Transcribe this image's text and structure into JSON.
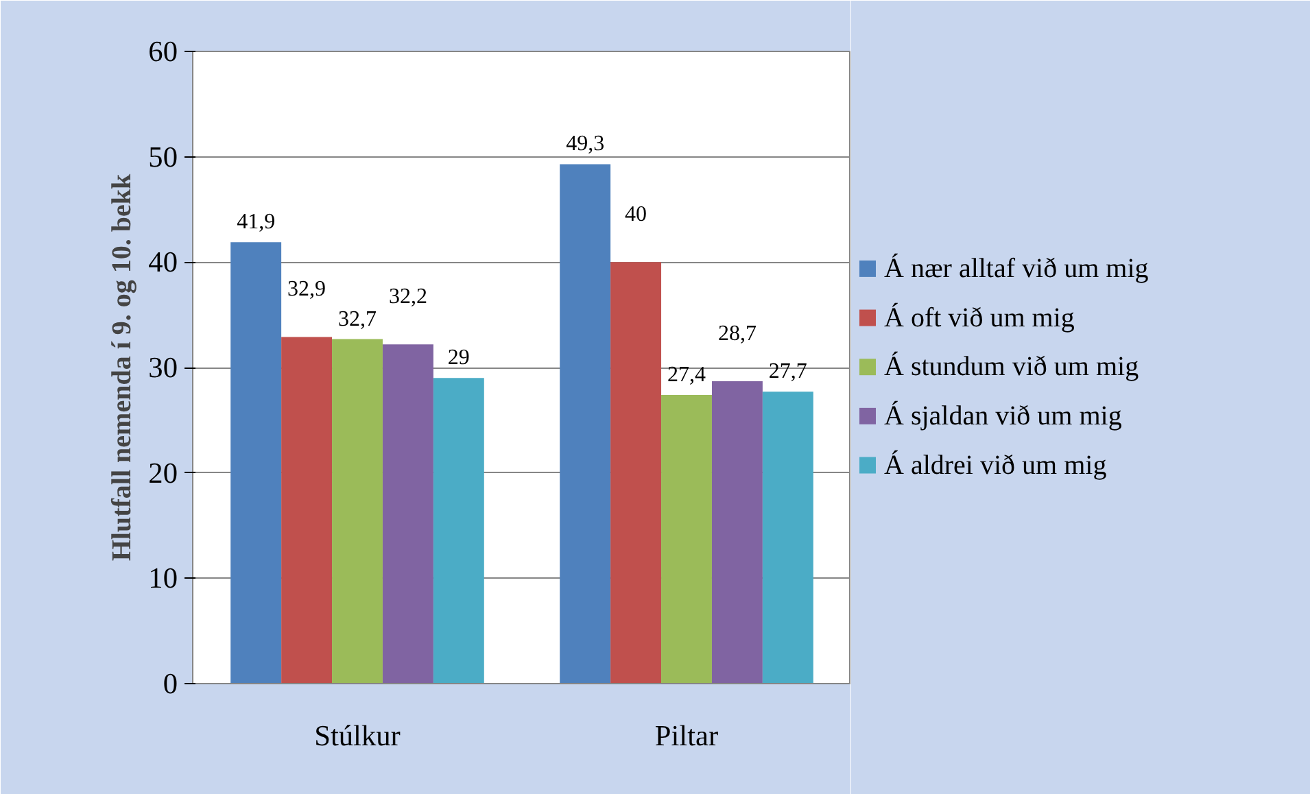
{
  "chart_data": {
    "type": "bar",
    "ylabel": "Hlutfall nemenda í 9. og 10. bekk",
    "categories": [
      "Stúlkur",
      "Piltar"
    ],
    "ylim": [
      0,
      60
    ],
    "yticks": [
      0,
      10,
      20,
      30,
      40,
      50,
      60
    ],
    "grid": "y",
    "legend": "right",
    "series": [
      {
        "name": "Á nær alltaf við um mig",
        "color": "#4f81bd",
        "values": [
          41.9,
          49.3
        ],
        "value_labels": [
          "41,9",
          "49,3"
        ]
      },
      {
        "name": "Á oft við um mig",
        "color": "#c0504d",
        "values": [
          32.9,
          40
        ],
        "value_labels": [
          "32,9",
          "40"
        ]
      },
      {
        "name": "Á stundum við um mig",
        "color": "#9bbb59",
        "values": [
          32.7,
          27.4
        ],
        "value_labels": [
          "32,7",
          "27,4"
        ]
      },
      {
        "name": "Á sjaldan við um mig",
        "color": "#8064a2",
        "values": [
          32.2,
          28.7
        ],
        "value_labels": [
          "32,2",
          "28,7"
        ]
      },
      {
        "name": "Á aldrei við um mig",
        "color": "#4bacc6",
        "values": [
          29,
          27.7
        ],
        "value_labels": [
          "29",
          "27,7"
        ]
      }
    ]
  }
}
